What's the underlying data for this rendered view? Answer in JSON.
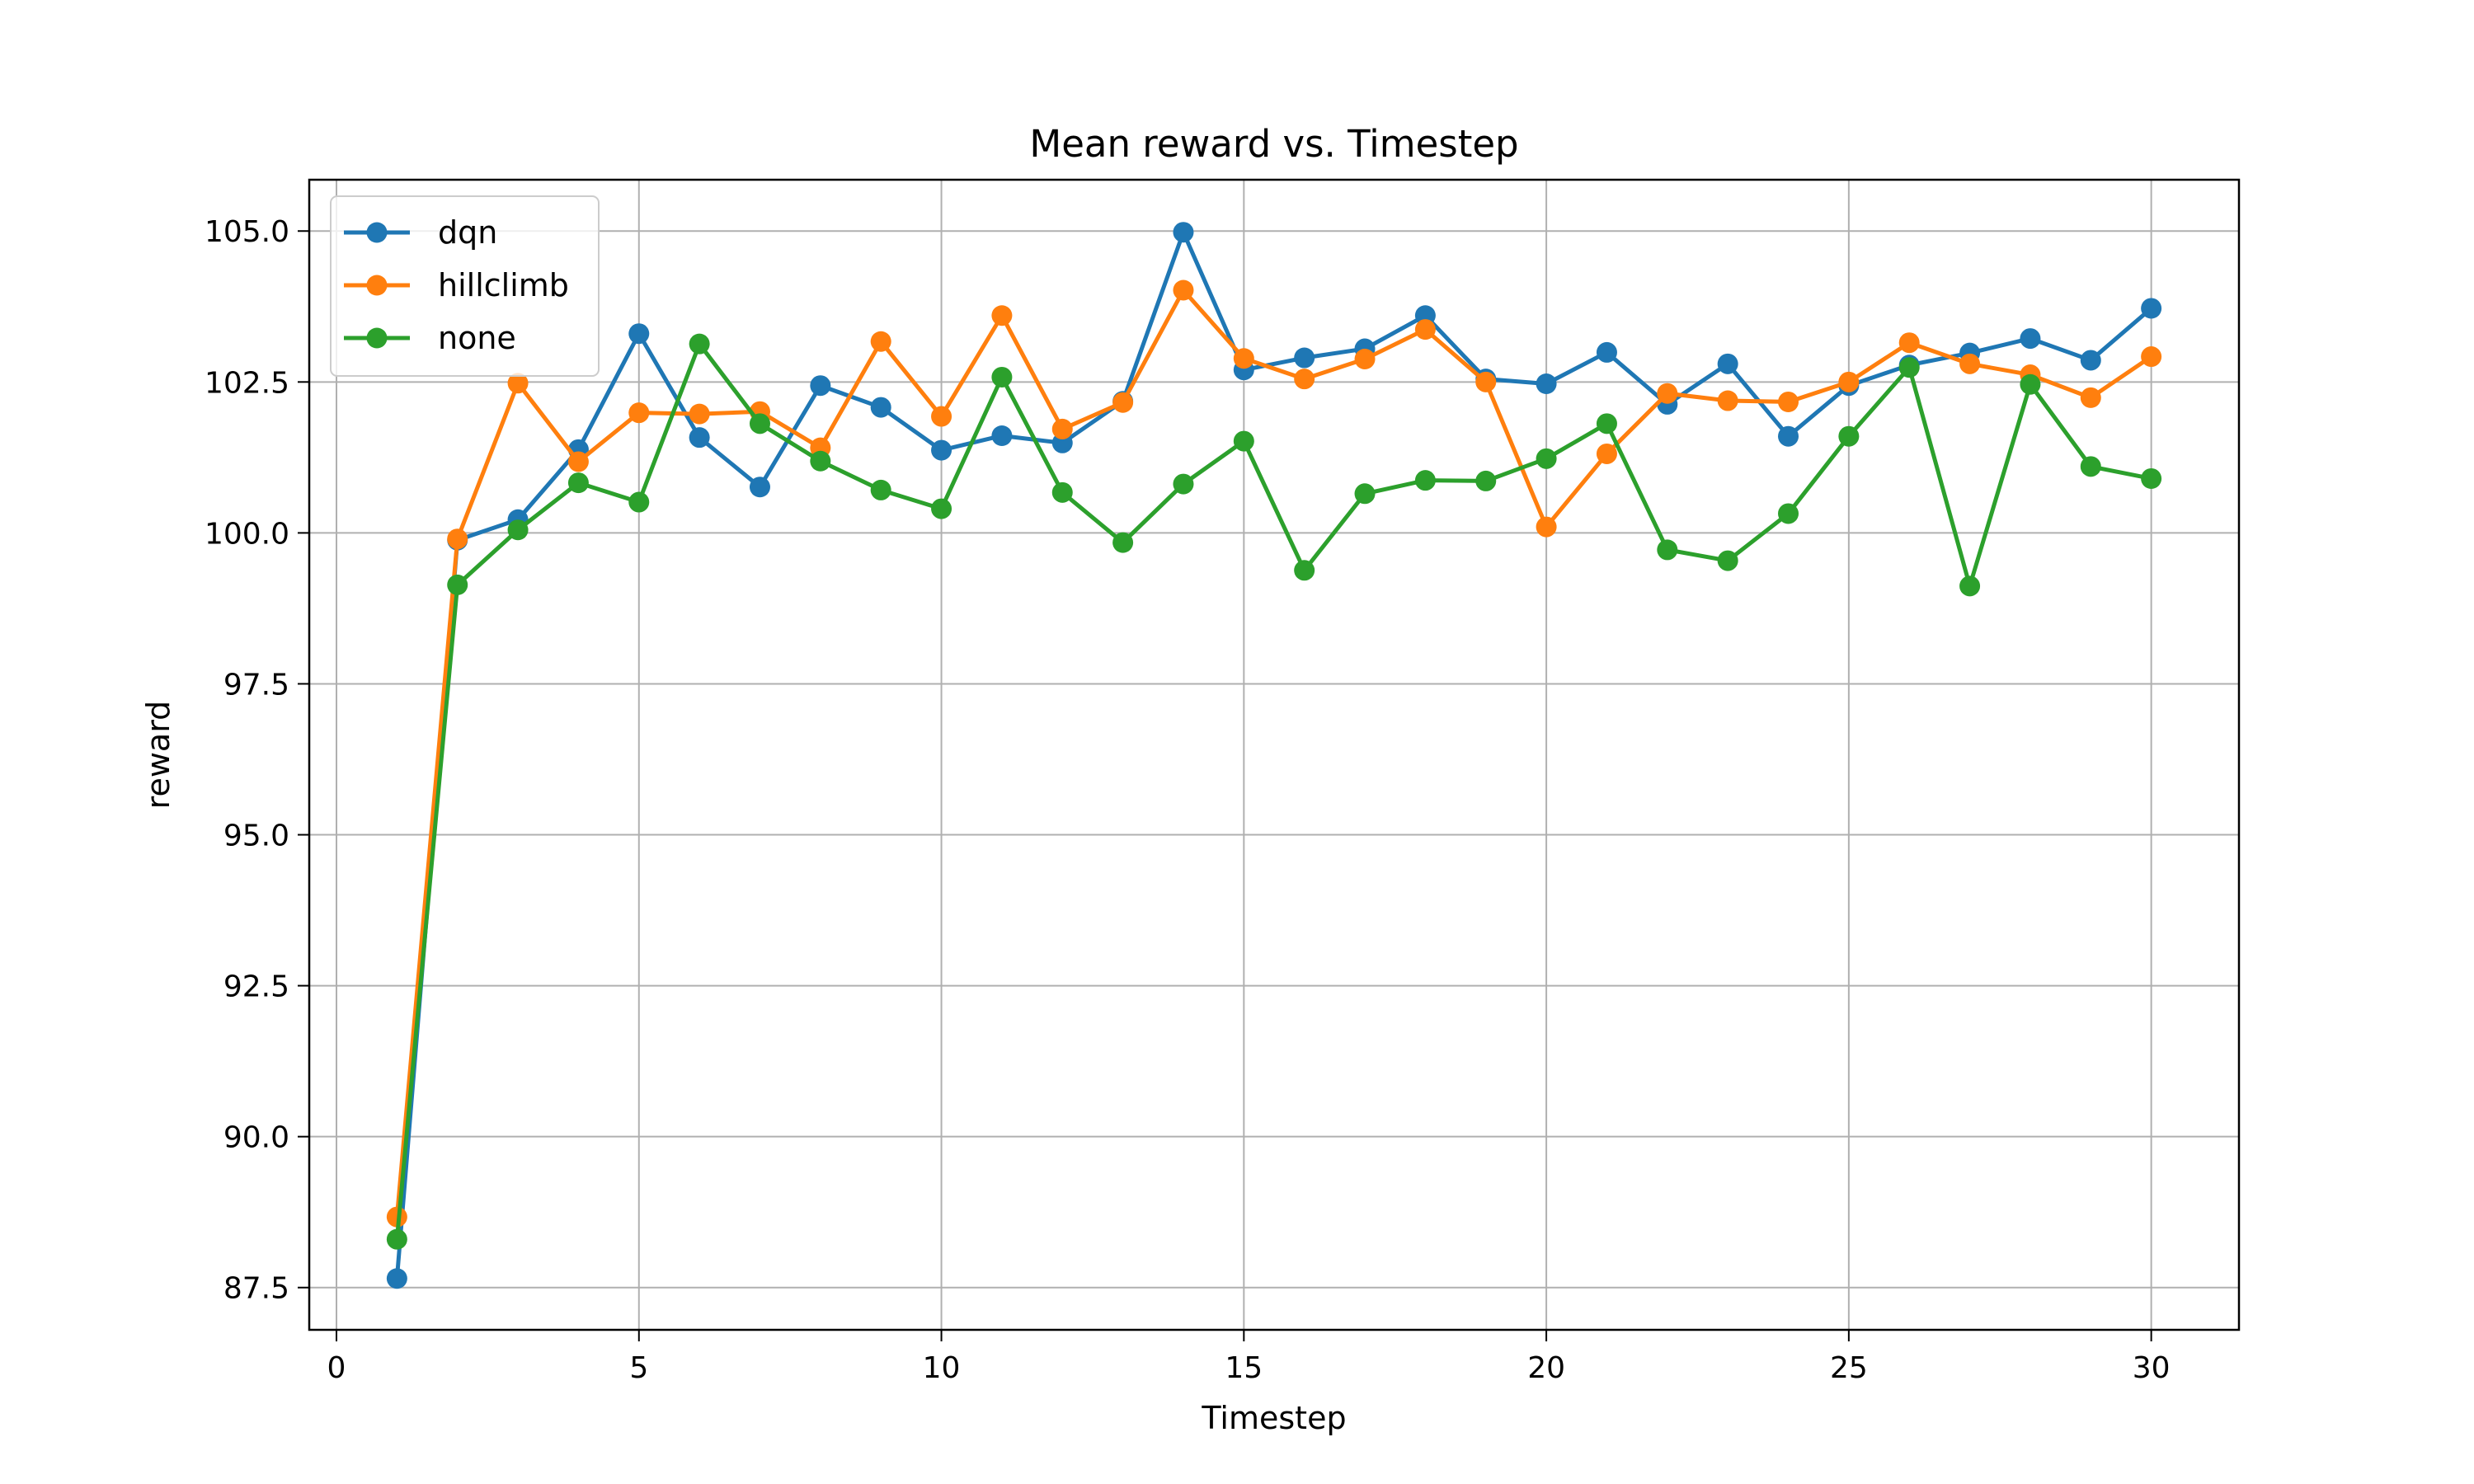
{
  "chart_data": {
    "type": "line",
    "title": "Mean reward vs. Timestep",
    "xlabel": "Timestep",
    "ylabel": "reward",
    "xlim": [
      -0.45,
      31.45
    ],
    "ylim": [
      86.8,
      105.85
    ],
    "xticks": [
      0,
      5,
      10,
      15,
      20,
      25,
      30
    ],
    "yticks": [
      87.5,
      90.0,
      92.5,
      95.0,
      97.5,
      100.0,
      102.5,
      105.0
    ],
    "grid": true,
    "legend_position": "top-left",
    "x": [
      1,
      2,
      3,
      4,
      5,
      6,
      7,
      8,
      9,
      10,
      11,
      12,
      13,
      14,
      15,
      16,
      17,
      18,
      19,
      20,
      21,
      22,
      23,
      24,
      25,
      26,
      27,
      28,
      29,
      30
    ],
    "series": [
      {
        "name": "dqn",
        "color": "#1f77b4",
        "values": [
          87.65,
          99.88,
          100.22,
          101.38,
          103.3,
          101.58,
          100.76,
          102.44,
          102.08,
          101.37,
          101.61,
          101.49,
          102.18,
          104.98,
          102.7,
          102.9,
          103.05,
          103.6,
          102.55,
          102.47,
          102.99,
          102.13,
          102.8,
          101.6,
          102.44,
          102.78,
          102.98,
          103.22,
          102.86,
          103.72
        ]
      },
      {
        "name": "hillclimb",
        "color": "#ff7f0e",
        "values": [
          88.67,
          99.9,
          102.48,
          101.18,
          101.99,
          101.97,
          102.01,
          101.41,
          103.17,
          101.93,
          103.6,
          101.72,
          102.16,
          104.02,
          102.89,
          102.55,
          102.88,
          103.37,
          102.5,
          100.1,
          101.31,
          102.31,
          102.19,
          102.17,
          102.5,
          103.15,
          102.8,
          102.62,
          102.24,
          102.92
        ]
      },
      {
        "name": "none",
        "color": "#2ca02c",
        "values": [
          88.3,
          99.14,
          100.05,
          100.83,
          100.51,
          103.13,
          101.81,
          101.19,
          100.71,
          100.4,
          102.58,
          100.67,
          99.84,
          100.81,
          101.52,
          99.38,
          100.65,
          100.87,
          100.86,
          101.23,
          101.81,
          99.72,
          99.54,
          100.32,
          101.6,
          102.74,
          99.12,
          102.46,
          101.1,
          100.9
        ]
      }
    ]
  }
}
